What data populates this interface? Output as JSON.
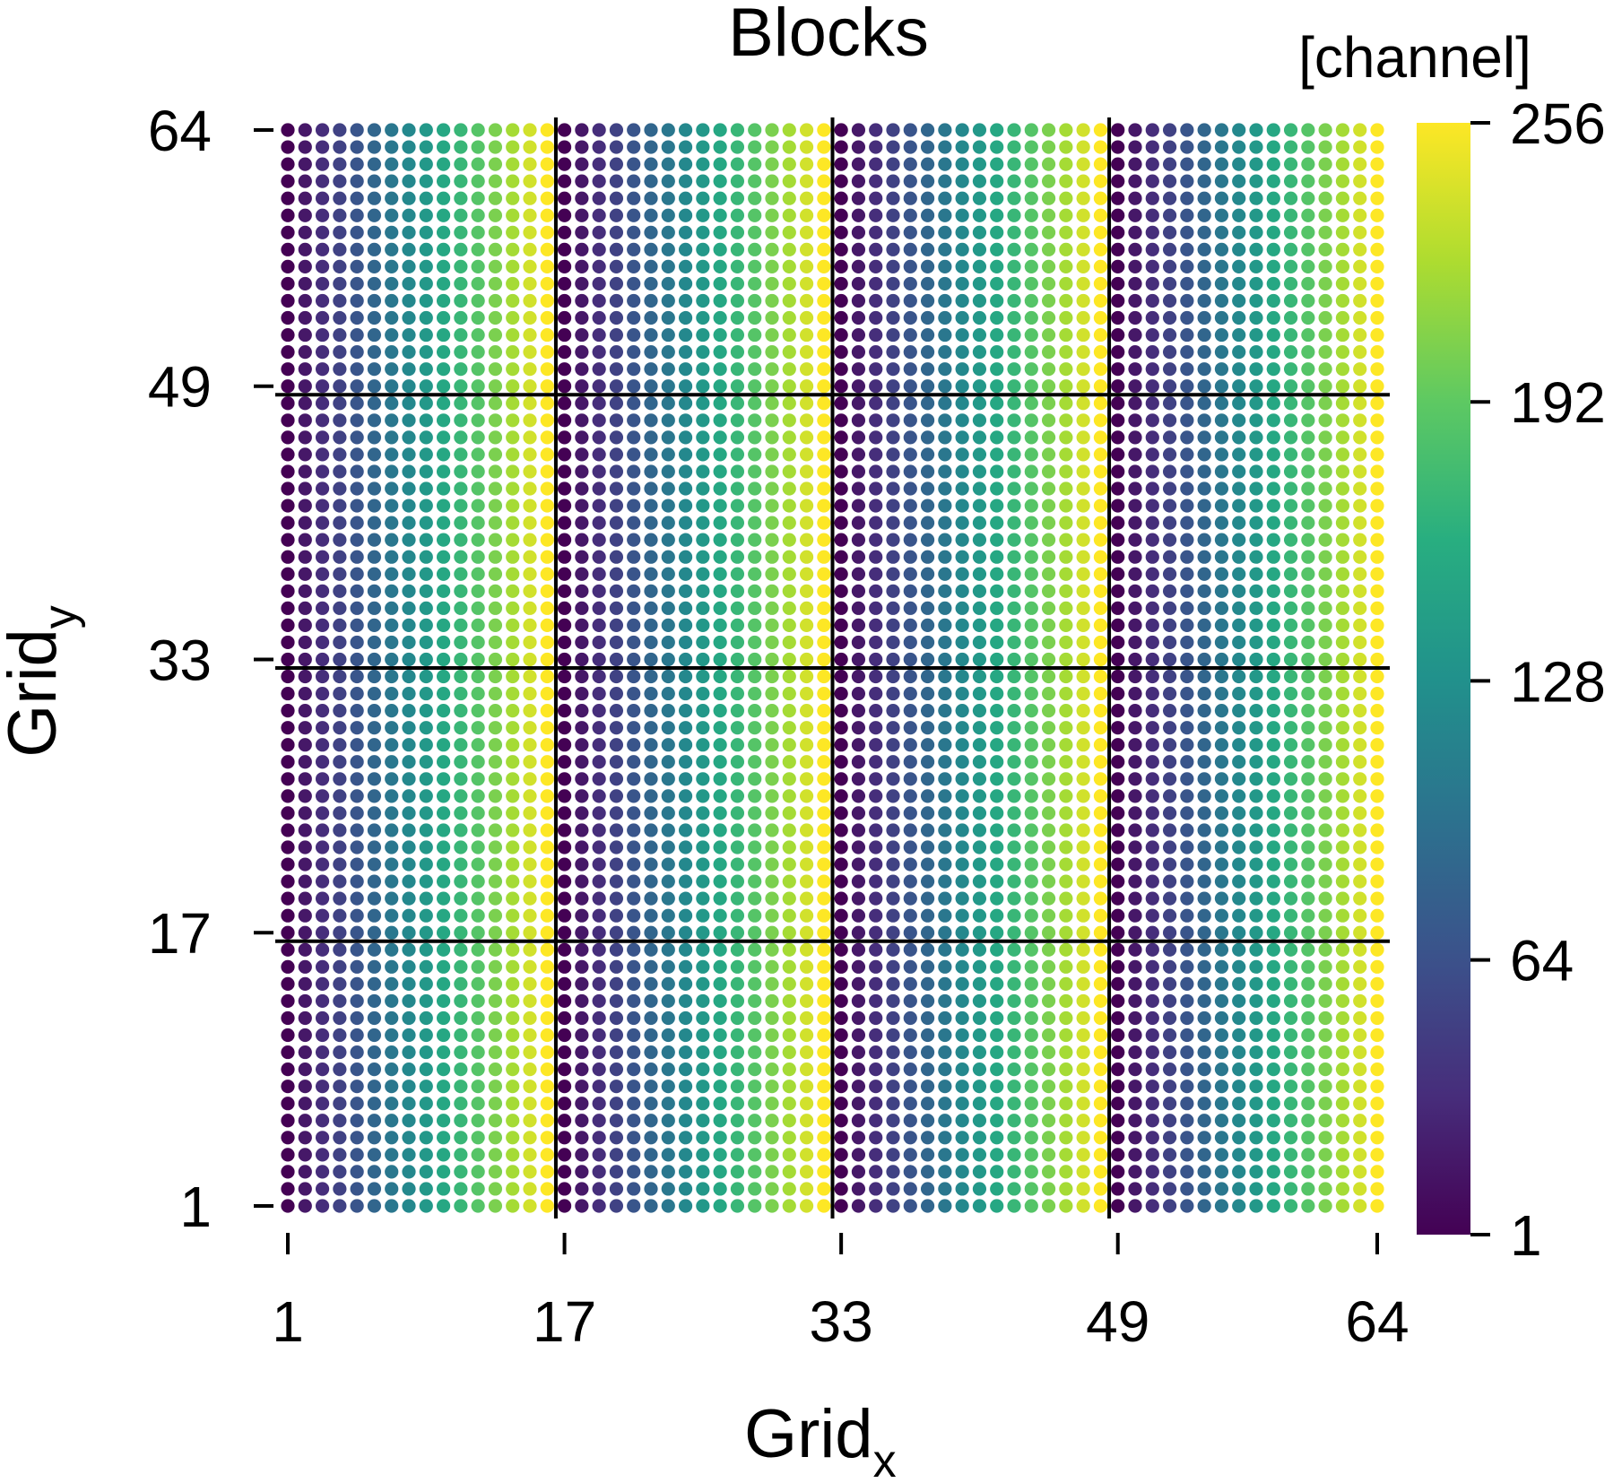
{
  "chart_data": {
    "type": "scatter",
    "title": "Blocks",
    "xlabel": "Grid",
    "xlabel_subscript": "x",
    "ylabel": "Grid",
    "ylabel_subscript": "y",
    "x_ticks": [
      "1",
      "17",
      "33",
      "49",
      "64"
    ],
    "y_ticks": [
      "1",
      "17",
      "33",
      "49",
      "64"
    ],
    "grid_size": [
      64,
      64
    ],
    "xlim": [
      1,
      64
    ],
    "ylim": [
      1,
      64
    ],
    "block_boundaries_x": [
      16.5,
      32.5,
      48.5
    ],
    "block_boundaries_y": [
      16.5,
      32.5,
      48.5
    ],
    "color_variable": "channel",
    "color_rule": "channel varies with column position within each 16-column block: dark (1) at the block's left column to bright (256) at its right column; identical for every row",
    "colormap": "viridis",
    "colorbar": {
      "title": "[channel]",
      "ticks": [
        "1",
        "64",
        "128",
        "192",
        "256"
      ],
      "range": [
        1,
        256
      ]
    }
  }
}
